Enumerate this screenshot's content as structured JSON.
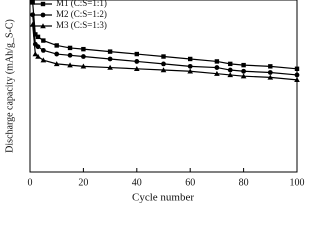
{
  "chart_data": {
    "type": "line",
    "x_label": "Cycle number",
    "y_label": "Discharge capacity (mAh/g_S-C)",
    "x": [
      1,
      2,
      3,
      5,
      10,
      15,
      20,
      30,
      40,
      50,
      60,
      70,
      75,
      80,
      90,
      100
    ],
    "series": [
      {
        "name": "M1  (C:S=1:1)",
        "color": "#000000",
        "marker": "square",
        "values": [
          690,
          560,
          550,
          535,
          515,
          505,
          500,
          490,
          480,
          470,
          460,
          450,
          440,
          435,
          430,
          420
        ]
      },
      {
        "name": "M2  (C:S=1:2)",
        "color": "#000000",
        "marker": "circle",
        "values": [
          640,
          520,
          510,
          495,
          480,
          475,
          470,
          460,
          450,
          440,
          430,
          425,
          415,
          410,
          405,
          395
        ]
      },
      {
        "name": "M3  (C:S=1:3)",
        "color": "#000000",
        "marker": "triangle",
        "values": [
          600,
          480,
          470,
          455,
          440,
          435,
          430,
          425,
          420,
          415,
          410,
          400,
          395,
          390,
          385,
          375
        ]
      }
    ],
    "xlim": [
      0,
      100
    ],
    "xticks": [
      0,
      20,
      40,
      60,
      80,
      100
    ],
    "ylim": [
      0,
      700
    ],
    "legend": "top-left"
  }
}
